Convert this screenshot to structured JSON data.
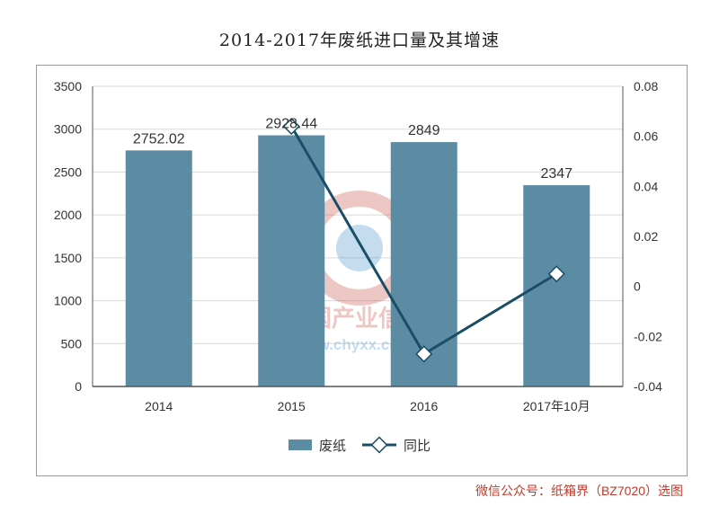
{
  "chart_data": {
    "type": "bar+line",
    "title": "2014-2017年废纸进口量及其增速",
    "categories": [
      "2014",
      "2015",
      "2016",
      "2017年10月"
    ],
    "series": [
      {
        "name": "废纸",
        "type": "bar",
        "axis": "left",
        "values": [
          2752.02,
          2928.44,
          2849,
          2347
        ],
        "labels": [
          "2752.02",
          "2928.44",
          "2849",
          "2347"
        ]
      },
      {
        "name": "同比",
        "type": "line",
        "axis": "right",
        "values": [
          null,
          0.064,
          -0.027,
          0.005
        ]
      }
    ],
    "y_left": {
      "ylim": [
        0,
        3500
      ],
      "ticks": [
        "0",
        "500",
        "1000",
        "1500",
        "2000",
        "2500",
        "3000",
        "3500"
      ]
    },
    "y_right": {
      "ylim": [
        -0.04,
        0.08
      ],
      "ticks": [
        "-0.04",
        "-0.02",
        "0",
        "0.02",
        "0.04",
        "0.06",
        "0.08"
      ]
    },
    "grid": true,
    "legend": "bottom",
    "colors": {
      "bar": "#5b8ca4",
      "line": "#1a4d66",
      "grid": "#d9d9d9"
    }
  },
  "watermark": {
    "text_cn": "中国产业信息",
    "text_url": "www.chyxx.com"
  },
  "source_note": "微信公众号：纸箱界（BZ7020）选图"
}
